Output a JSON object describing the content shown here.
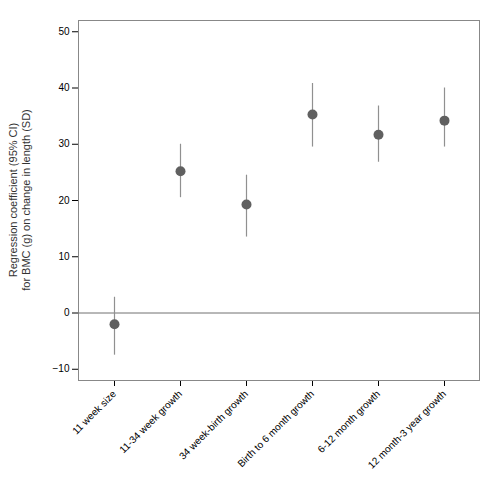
{
  "chart_data": {
    "type": "scatter",
    "categories": [
      "11 week size",
      "11-34 week growth",
      "34 week-birth growth",
      "Birth to 6 month growth",
      "6-12 month growth",
      "12 month-3 year growth"
    ],
    "values": [
      -2.0,
      25.2,
      19.3,
      35.3,
      31.7,
      34.2
    ],
    "ci_low": [
      -7.5,
      20.5,
      13.5,
      29.5,
      26.8,
      29.5
    ],
    "ci_high": [
      2.8,
      30.0,
      24.5,
      40.8,
      36.8,
      40.0
    ],
    "hline": 0,
    "color": "#606060",
    "ylabel": "Regression coefficient (95% CI)\nfor BMC (g) on change in length (SD)",
    "ylim": [
      -12,
      52
    ],
    "yticks": [
      -10,
      0,
      10,
      20,
      30,
      40,
      50
    ],
    "grid": false
  }
}
